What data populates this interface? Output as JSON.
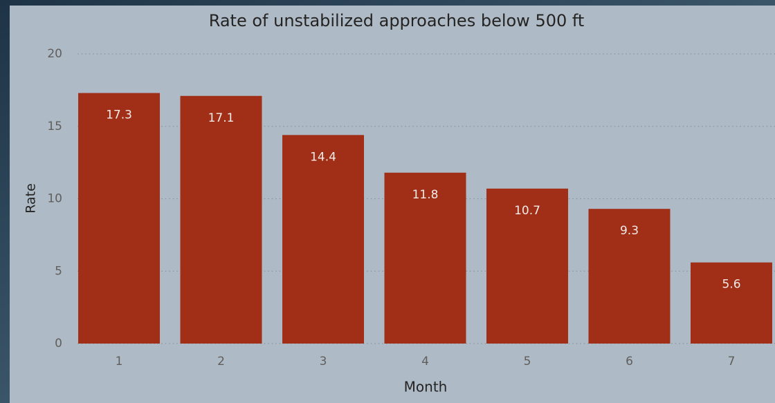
{
  "chart_data": {
    "type": "bar",
    "title": "Rate of unstabilized approaches below 500 ft",
    "x_label": "Month",
    "y_label": "Rate",
    "categories": [
      "1",
      "2",
      "3",
      "4",
      "5",
      "6",
      "7"
    ],
    "values": [
      17.3,
      17.1,
      14.4,
      11.8,
      10.7,
      9.3,
      5.6
    ],
    "color": "#a12e17",
    "ylim": [
      0,
      20
    ],
    "yticks": [
      0,
      5,
      10,
      15,
      20
    ],
    "grid": true
  }
}
